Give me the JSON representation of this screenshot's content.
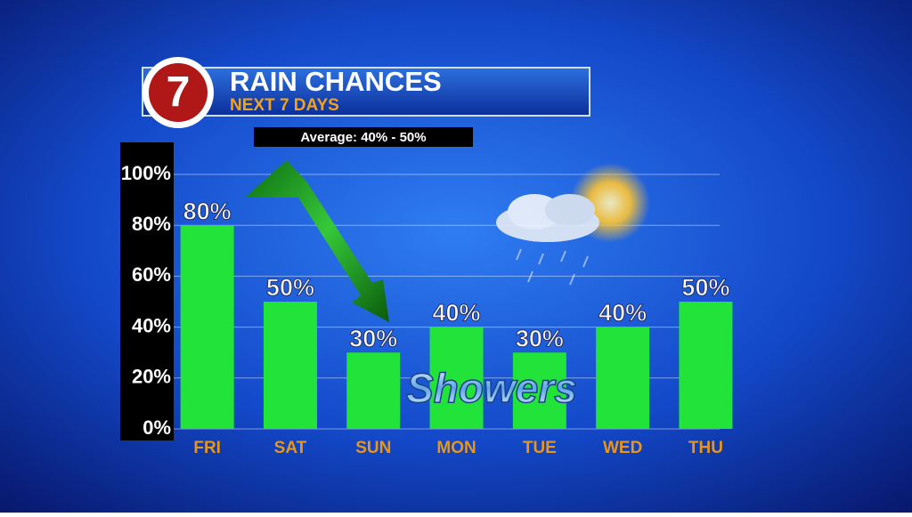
{
  "chart_data": {
    "type": "bar",
    "logo": "7",
    "title": "RAIN CHANCES",
    "subtitle": "NEXT 7 DAYS",
    "annotation": "Average: 40% - 50%",
    "caption": "Showers",
    "categories": [
      "FRI",
      "SAT",
      "SUN",
      "MON",
      "TUE",
      "WED",
      "THU"
    ],
    "values": [
      80,
      50,
      30,
      40,
      30,
      40,
      50
    ],
    "value_labels": [
      "80%",
      "50%",
      "30%",
      "40%",
      "30%",
      "40%",
      "50%"
    ],
    "color": "#22e33a",
    "ylim": [
      0,
      100
    ],
    "yticks": [
      {
        "value": 0,
        "label": "0%"
      },
      {
        "value": 20,
        "label": "20%"
      },
      {
        "value": 40,
        "label": "40%"
      },
      {
        "value": 60,
        "label": "60%"
      },
      {
        "value": 80,
        "label": "80%"
      },
      {
        "value": 100,
        "label": "100%"
      }
    ],
    "grid": true
  }
}
